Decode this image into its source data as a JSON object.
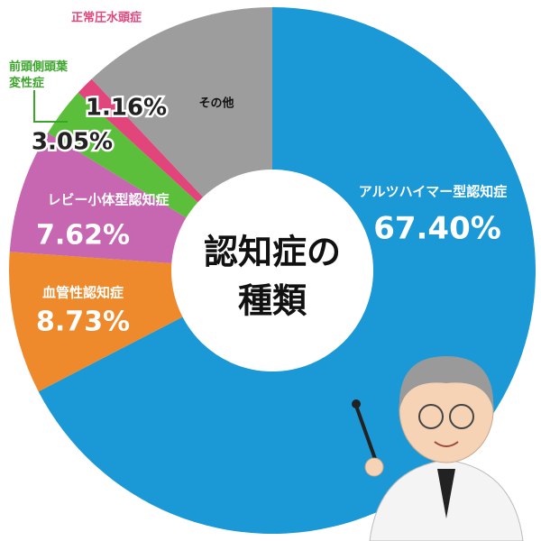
{
  "chart_data": {
    "type": "donut",
    "title_lines": [
      "認知症の",
      "種類"
    ],
    "categories": [
      "アルツハイマー型認知症",
      "血管性認知症",
      "レビー小体型認知症",
      "前頭側頭葉変性症",
      "正常圧水頭症",
      "その他"
    ],
    "values": [
      67.4,
      8.73,
      7.62,
      3.05,
      1.16,
      12.04
    ],
    "value_labels": [
      "67.40%",
      "8.73%",
      "7.62%",
      "3.05%",
      "1.16%",
      null
    ],
    "colors": [
      "#1b98d6",
      "#ee8a2b",
      "#c767b1",
      "#5cbf3c",
      "#e2457c",
      "#9d9d9d"
    ]
  }
}
